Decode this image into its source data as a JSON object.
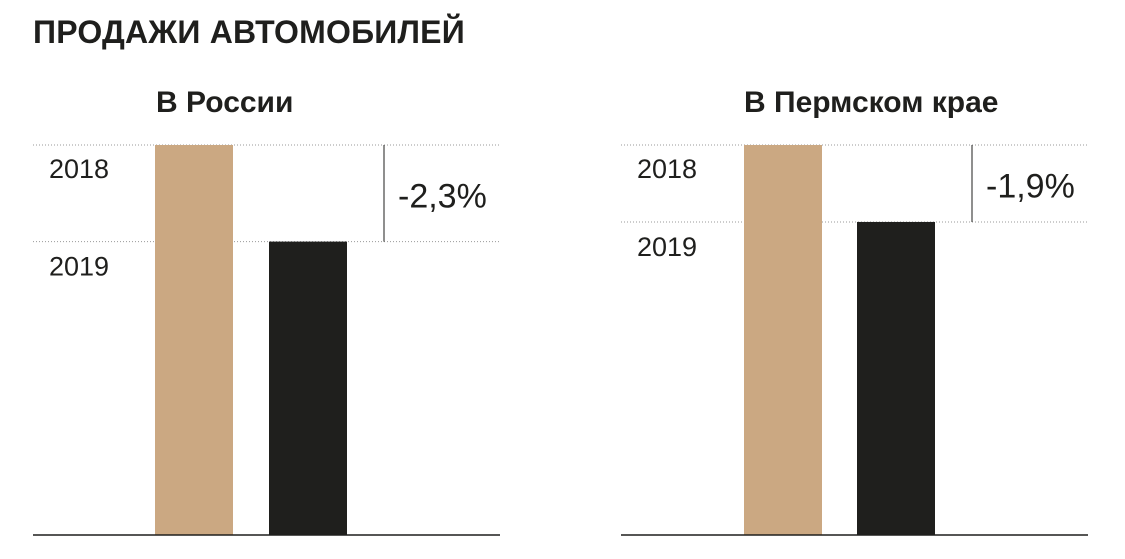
{
  "title": "ПРОДАЖИ АВТОМОБИЛЕЙ",
  "colors": {
    "year_2018": "#cba882",
    "year_2019": "#1f1f1d",
    "baseline": "#1f1f1d",
    "gridline": "#9a9a9a"
  },
  "chart_data": [
    {
      "type": "bar",
      "title": "В России",
      "categories": [
        "2018",
        "2019"
      ],
      "values": [
        100,
        97.7
      ],
      "change_label": "-2,3%",
      "axis_note": "y axis truncated: baseline far below the 2019 level"
    },
    {
      "type": "bar",
      "title": "В Пермском крае",
      "categories": [
        "2018",
        "2019"
      ],
      "values": [
        100,
        98.1
      ],
      "change_label": "-1,9%",
      "axis_note": "y axis truncated: baseline far below the 2019 level"
    }
  ]
}
